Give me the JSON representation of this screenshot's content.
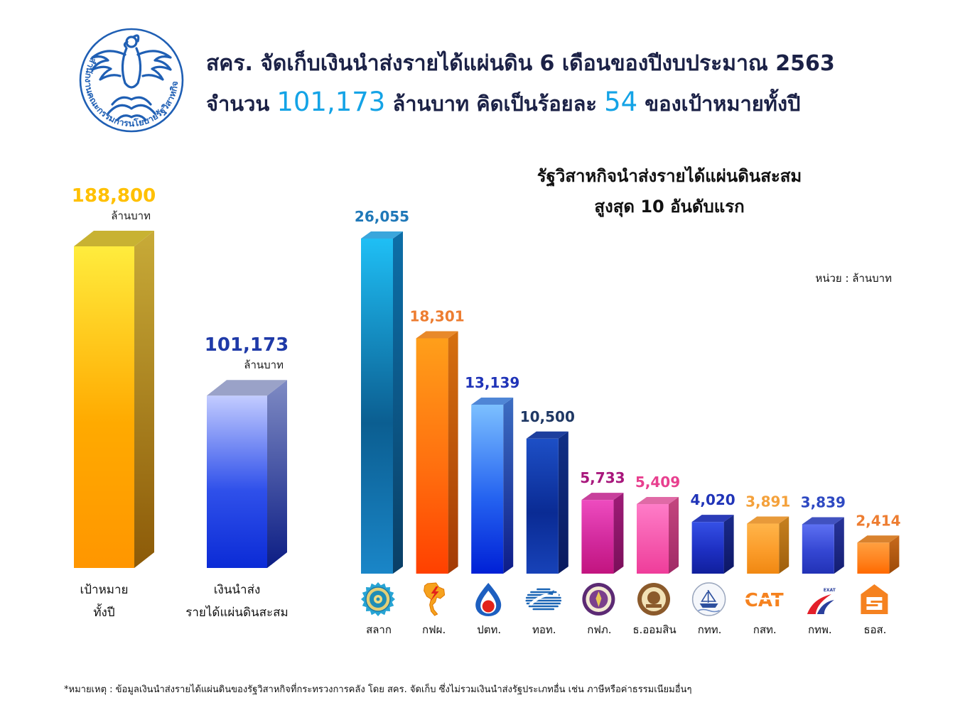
{
  "seal": {
    "text": "สำนักงานคณะกรรมการนโยบายรัฐวิสาหกิจ",
    "color": "#1f5fb4"
  },
  "header": {
    "line1": "สคร. จัดเก็บเงินนำส่งรายได้แผ่นดิน 6 เดือนของปีงบประมาณ 2563",
    "line2_prefix": "จำนวน",
    "line2_amount": "101,173",
    "line2_middle": "ล้านบาท คิดเป็นร้อยละ",
    "line2_percent": "54",
    "line2_suffix": "ของเป้าหมายทั้งปี",
    "text_color": "#1b2146",
    "highlight_color": "#14a3e6"
  },
  "chart_data": [
    {
      "type": "bar",
      "categories": [
        [
          "เป้าหมาย",
          "ทั้งปี"
        ],
        [
          "เงินนำส่ง",
          "รายได้แผ่นดินสะสม"
        ]
      ],
      "values": [
        188800,
        101173
      ],
      "value_labels": [
        "188,800",
        "101,173"
      ],
      "unit_labels": [
        "ล้านบาท",
        "ล้านบาท"
      ],
      "label_colors": [
        "#ffc000",
        "#1f3aa8"
      ],
      "bar_colors": [
        {
          "top": "#ffec3d",
          "mid": "#ffaa00",
          "bottom": "#ff9600",
          "side_top": "#c8ab38",
          "side_bottom": "#8c5a08",
          "cap": "#c8b232"
        },
        {
          "top": "#c3ccff",
          "mid": "#2f50ea",
          "bottom": "#0b2bd6",
          "side_top": "#7f8bc4",
          "side_bottom": "#0c1d84",
          "cap": "#9aa2c8"
        }
      ]
    },
    {
      "type": "bar",
      "title": [
        "รัฐวิสาหกิจนำส่งรายได้แผ่นดินสะสม",
        "สูงสุด 10 อันดับแรก"
      ],
      "unit_note": "หน่วย : ล้านบาท",
      "categories": [
        "สลาก",
        "กฟผ.",
        "ปตท.",
        "ทอท.",
        "กฟภ.",
        "ธ.ออมสิน",
        "กทท.",
        "กสท.",
        "กทพ.",
        "ธอส."
      ],
      "values": [
        26055,
        18301,
        13139,
        10500,
        5733,
        5409,
        4020,
        3891,
        3839,
        2414
      ],
      "value_labels": [
        "26,055",
        "18,301",
        "13,139",
        "10,500",
        "5,733",
        "5,409",
        "4,020",
        "3,891",
        "3,839",
        "2,414"
      ],
      "label_colors": [
        "#1f78b8",
        "#ed7d31",
        "#2034b8",
        "#1f3864",
        "#a8177c",
        "#e8408f",
        "#2034b8",
        "#f4a13b",
        "#2e49c2",
        "#ed7d31"
      ],
      "bar_colors": [
        {
          "top": "#1fbff5",
          "mid": "#0b5e91",
          "bottom": "#1a86c8",
          "side_top": "#0d6fa8",
          "side_bottom": "#0a3f66",
          "cap": "#3aa6dc"
        },
        {
          "top": "#ff9f1a",
          "mid": "#ff6f0f",
          "bottom": "#ff4000",
          "side_top": "#d6700f",
          "side_bottom": "#a33a05",
          "cap": "#e8892a"
        },
        {
          "top": "#7cc0ff",
          "mid": "#2563f0",
          "bottom": "#0020d6",
          "side_top": "#3d6ec2",
          "side_bottom": "#0d1c8a",
          "cap": "#4f86d6"
        },
        {
          "top": "#1d4fc6",
          "mid": "#0a2b94",
          "bottom": "#1742b8",
          "side_top": "#102f86",
          "side_bottom": "#0a1a5e",
          "cap": "#1e3f9e"
        },
        {
          "top": "#ee4cbf",
          "mid": "#d22a9d",
          "bottom": "#c2147f",
          "side_top": "#9e1c77",
          "side_bottom": "#7a0f5a",
          "cap": "#c8409c"
        },
        {
          "top": "#ff7cc8",
          "mid": "#f55aae",
          "bottom": "#ef3d9a",
          "side_top": "#c4467f",
          "side_bottom": "#a02a66",
          "cap": "#e06aa6"
        },
        {
          "top": "#3550e6",
          "mid": "#1d2fc2",
          "bottom": "#101f9c",
          "side_top": "#1a2a8a",
          "side_bottom": "#0d1766",
          "cap": "#2b3cb8"
        },
        {
          "top": "#ffb54a",
          "mid": "#fb9c2a",
          "bottom": "#f08812",
          "side_top": "#c7811f",
          "side_bottom": "#9e5e0c",
          "cap": "#e89a3a"
        },
        {
          "top": "#5d70f2",
          "mid": "#3446d2",
          "bottom": "#2232b6",
          "side_top": "#27349a",
          "side_bottom": "#141e72",
          "cap": "#4152c0"
        },
        {
          "top": "#ffa040",
          "mid": "#ff8420",
          "bottom": "#ff6a00",
          "side_top": "#c86a1c",
          "side_bottom": "#9c4a08",
          "cap": "#d9822e"
        }
      ],
      "category_logos": [
        "lottery-office-logo",
        "egat-logo",
        "ptt-logo",
        "aot-logo",
        "pea-logo",
        "gsb-logo",
        "pat-logo",
        "cat-logo",
        "exat-logo",
        "ghb-logo"
      ]
    }
  ],
  "logo_lettering": {
    "cat": "CAT",
    "exat": "EXAT"
  },
  "footnote": "*หมายเหตุ : ข้อมูลเงินนำส่งรายได้แผ่นดินของรัฐวิสาหกิจที่กระทรวงการคลัง โดย สคร. จัดเก็บ ซึ่งไม่รวมเงินนำส่งรัฐประเภทอื่น เช่น ภาษีหรือค่าธรรมเนียมอื่นๆ"
}
